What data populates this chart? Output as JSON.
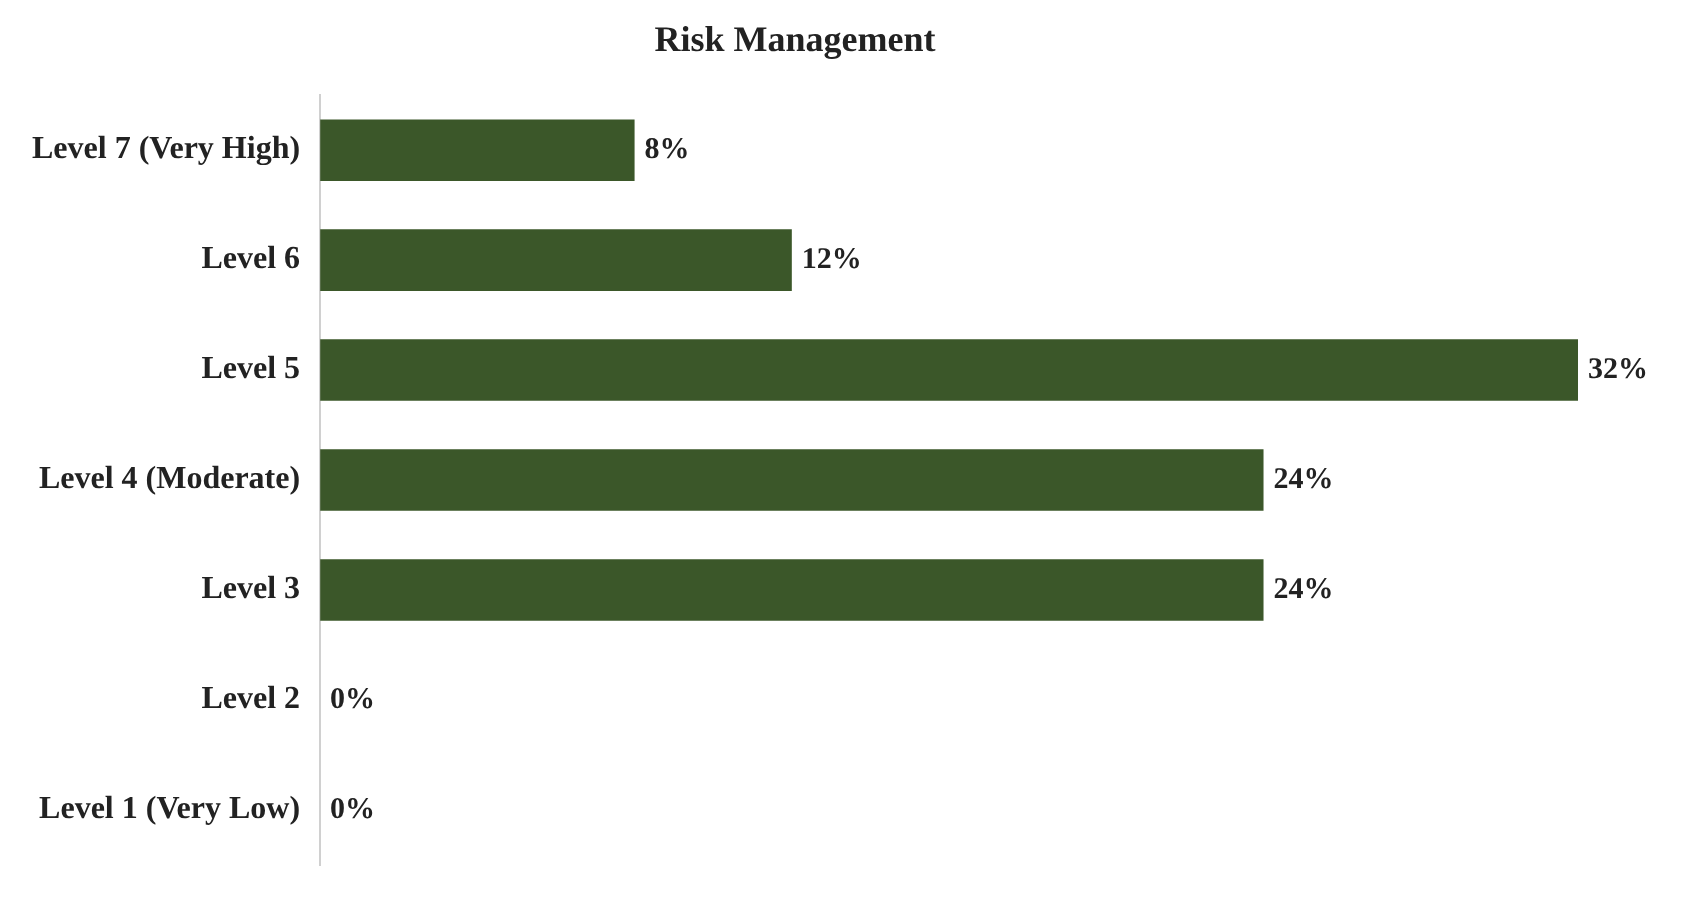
{
  "chart_data": {
    "type": "bar",
    "orientation": "horizontal",
    "title": "Risk Management",
    "categories": [
      "Level 7 (Very High)",
      "Level 6",
      "Level 5",
      "Level 4 (Moderate)",
      "Level 3",
      "Level 2",
      "Level 1 (Very Low)"
    ],
    "values": [
      8,
      12,
      32,
      24,
      24,
      0,
      0
    ],
    "value_labels": [
      "8%",
      "12%",
      "32%",
      "24%",
      "24%",
      "0%",
      "0%"
    ],
    "color": "#3b5729",
    "tick_labels": "y"
  }
}
